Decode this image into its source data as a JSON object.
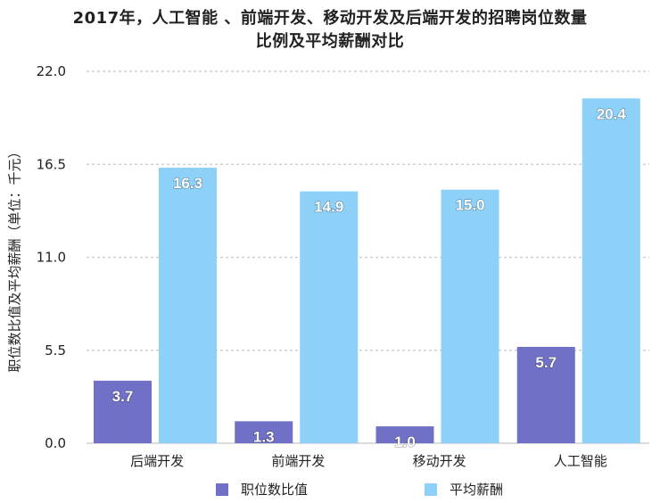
{
  "chart_data": {
    "type": "bar",
    "title_lines": [
      "2017年，人工智能 、前端开发、移动开发及后端开发的招聘岗位数量",
      "比例及平均薪酬对比"
    ],
    "ylabel": "职位数比值及平均薪酬（单位：千元）",
    "xlabel": "",
    "categories": [
      "后端开发",
      "前端开发",
      "移动开发",
      "人工智能"
    ],
    "series": [
      {
        "name": "职位数比值",
        "values": [
          3.7,
          1.3,
          1.0,
          5.7
        ],
        "labels": [
          "3.7",
          "1.3",
          "1.0",
          "5.7"
        ],
        "color": "#7070c6"
      },
      {
        "name": "平均薪酬",
        "values": [
          16.3,
          14.9,
          15.0,
          20.4
        ],
        "labels": [
          "16.3",
          "14.9",
          "15.0",
          "20.4"
        ],
        "color": "#8dd0f8"
      }
    ],
    "ylim": [
      0,
      22
    ],
    "yticks": [
      "0.0",
      "5.5",
      "11.0",
      "16.5",
      "22.0"
    ],
    "ytick_values": [
      0,
      5.5,
      11,
      16.5,
      22
    ],
    "grid": true,
    "legend_position": "bottom"
  }
}
